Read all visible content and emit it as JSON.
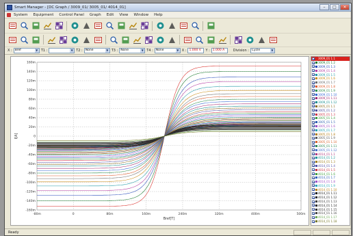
{
  "window": {
    "title": "Smart Manager - [DC Graph / 3009_01/ 3005_01/ 4014_01]"
  },
  "menu": {
    "items": [
      "System",
      "Equipment",
      "Control Panel",
      "Graph",
      "Edit",
      "View",
      "Window",
      "Help"
    ]
  },
  "toolbar1": {
    "icons": [
      "tools-icon",
      "open-file-icon",
      "graph-settings-icon",
      "write-icon",
      "save-icon",
      "layout-icon",
      "window-icon",
      "table-icon",
      "columns-icon",
      "grid-icon",
      "list-icon",
      "chart-icon",
      "monitor-icon",
      "image-icon",
      "edit-icon",
      "book-icon",
      "help-icon"
    ]
  },
  "toolbar2": {
    "icons": [
      "open-graph-icon",
      "star-icon",
      "align-left-icon",
      "align-right-icon",
      "align-center-icon",
      "chart-view-icon",
      "axis-icon",
      "zoom-in-icon",
      "zoom-out-icon",
      "zoom-fit-icon",
      "zoom-reset-icon",
      "grid-toggle-icon",
      "cursor-icon",
      "record-icon",
      "table-view-icon",
      "export-icon",
      "scale-icon",
      "info-icon",
      "marker-icon",
      "calc-icon",
      "print-icon",
      "layers-icon"
    ]
  },
  "params": {
    "x_label": "X :",
    "x_value": "Bref",
    "t1_label": "T1 :",
    "t1_value": "",
    "t2_label": "T2 :",
    "t2_value": "None",
    "t3_label": "T3 :",
    "t3_value": "None",
    "t4_label": "T4 :",
    "t4_value": "None",
    "xl_label": "X :",
    "xl_value": "1.000 V",
    "yl_label": "Y :",
    "yl_value": "1.000 A",
    "division_label": "Division :",
    "division_value": "Cycle"
  },
  "chart_data": {
    "type": "line",
    "xlabel": "Bref[T]",
    "ylabel": "I[A]",
    "xlim": [
      -80,
      500
    ],
    "ylim": [
      -160,
      160
    ],
    "x_ticks": [
      "-80m",
      "0",
      "80m",
      "160m",
      "240m",
      "320m",
      "400m",
      "500m"
    ],
    "y_ticks": [
      "160m",
      "140m",
      "120m",
      "100m",
      "80m",
      "60m",
      "40m",
      "20m",
      "0",
      "-20m",
      "-40m",
      "-60m",
      "-80m",
      "-100m",
      "-120m",
      "-140m",
      "-160m"
    ],
    "center": 200,
    "series_count": 42,
    "series": [
      {
        "name": "3009_01 1.1",
        "color": "#d8231e",
        "amplitude": 152,
        "slope": 0.03
      },
      {
        "name": "3009_01 1.2",
        "color": "#1a7a2e",
        "amplitude": 140,
        "slope": 0.028
      },
      {
        "name": "3009_01 1.3",
        "color": "#2246b8",
        "amplitude": 128,
        "slope": 0.026
      },
      {
        "name": "3009_01 1.4",
        "color": "#b23aa0",
        "amplitude": 118,
        "slope": 0.025
      },
      {
        "name": "3009_01 1.5",
        "color": "#1f9aa6",
        "amplitude": 108,
        "slope": 0.024
      },
      {
        "name": "3009_01 1.6",
        "color": "#c98a12",
        "amplitude": 99,
        "slope": 0.023
      },
      {
        "name": "3009_01 1.7",
        "color": "#6b6b6b",
        "amplitude": 92,
        "slope": 0.022
      },
      {
        "name": "3009_01 1.8",
        "color": "#e05a2a",
        "amplitude": 86,
        "slope": 0.022
      },
      {
        "name": "3009_01 1.9",
        "color": "#2d8f4e",
        "amplitude": 80,
        "slope": 0.021
      },
      {
        "name": "3009_01 1.10",
        "color": "#3568d4",
        "amplitude": 75,
        "slope": 0.021
      },
      {
        "name": "3009_01 1.11",
        "color": "#a1286f",
        "amplitude": 70,
        "slope": 0.02
      },
      {
        "name": "3009_01 1.12",
        "color": "#148d8d",
        "amplitude": 65,
        "slope": 0.02
      },
      {
        "name": "3005_01 1.1",
        "color": "#8c6d1f",
        "amplitude": 61,
        "slope": 0.019
      },
      {
        "name": "3005_01 1.2",
        "color": "#4d4d9e",
        "amplitude": 57,
        "slope": 0.019
      },
      {
        "name": "3005_01 1.3",
        "color": "#cc3344",
        "amplitude": 53,
        "slope": 0.018
      },
      {
        "name": "3005_01 1.4",
        "color": "#3a9a3a",
        "amplitude": 50,
        "slope": 0.018
      },
      {
        "name": "3005_01 1.5",
        "color": "#2a5cb0",
        "amplitude": 47,
        "slope": 0.018
      },
      {
        "name": "3005_01 1.6",
        "color": "#9b4bc2",
        "amplitude": 44,
        "slope": 0.017
      },
      {
        "name": "3005_01 1.7",
        "color": "#20a0b0",
        "amplitude": 41,
        "slope": 0.017
      },
      {
        "name": "3005_01 1.8",
        "color": "#b07a10",
        "amplitude": 39,
        "slope": 0.017
      },
      {
        "name": "3005_01 1.9",
        "color": "#555555",
        "amplitude": 37,
        "slope": 0.016
      },
      {
        "name": "3005_01 1.10",
        "color": "#d9622b",
        "amplitude": 35,
        "slope": 0.016
      },
      {
        "name": "3005_01 1.11",
        "color": "#2e8a55",
        "amplitude": 33,
        "slope": 0.016
      },
      {
        "name": "3005_01 1.12",
        "color": "#4470cc",
        "amplitude": 31,
        "slope": 0.016
      },
      {
        "name": "4014_01 1.1",
        "color": "#b03a80",
        "amplitude": 30,
        "slope": 0.015
      },
      {
        "name": "4014_01 1.2",
        "color": "#179595",
        "amplitude": 29,
        "slope": 0.015
      },
      {
        "name": "4014_01 1.3",
        "color": "#a08020",
        "amplitude": 28,
        "slope": 0.015
      },
      {
        "name": "4014_01 1.4",
        "color": "#5050a8",
        "amplitude": 27,
        "slope": 0.015
      },
      {
        "name": "4014_01 1.5",
        "color": "#c83040",
        "amplitude": 26,
        "slope": 0.015
      },
      {
        "name": "4014_01 1.6",
        "color": "#40a040",
        "amplitude": 25,
        "slope": 0.014
      },
      {
        "name": "4014_01 1.7",
        "color": "#3060b8",
        "amplitude": 24,
        "slope": 0.014
      },
      {
        "name": "4014_01 1.8",
        "color": "#a050c8",
        "amplitude": 23,
        "slope": 0.014
      },
      {
        "name": "4014_01 1.9",
        "color": "#28a8b8",
        "amplitude": 22,
        "slope": 0.014
      },
      {
        "name": "4014_01 1.10",
        "color": "#b88018",
        "amplitude": 21,
        "slope": 0.014
      },
      {
        "name": "4014_01 1.11",
        "color": "#1a1a1a",
        "amplitude": 24,
        "slope": 0.022
      },
      {
        "name": "4014_01 1.12",
        "color": "#2b2b2b",
        "amplitude": 22,
        "slope": 0.022
      },
      {
        "name": "4014_01 1.13",
        "color": "#3c3c3c",
        "amplitude": 20,
        "slope": 0.022
      },
      {
        "name": "4014_01 1.14",
        "color": "#222222",
        "amplitude": 18,
        "slope": 0.022
      },
      {
        "name": "4014_01 1.15",
        "color": "#303030",
        "amplitude": 16,
        "slope": 0.022
      },
      {
        "name": "4014_01 1.16",
        "color": "#444444",
        "amplitude": 14,
        "slope": 0.022
      },
      {
        "name": "4014_01 1.17",
        "color": "#6aa84f",
        "amplitude": 12,
        "slope": 0.02
      },
      {
        "name": "4014_01 1.18",
        "color": "#7a7a2a",
        "amplitude": 10,
        "slope": 0.02
      }
    ]
  },
  "status": {
    "text": "Ready"
  }
}
